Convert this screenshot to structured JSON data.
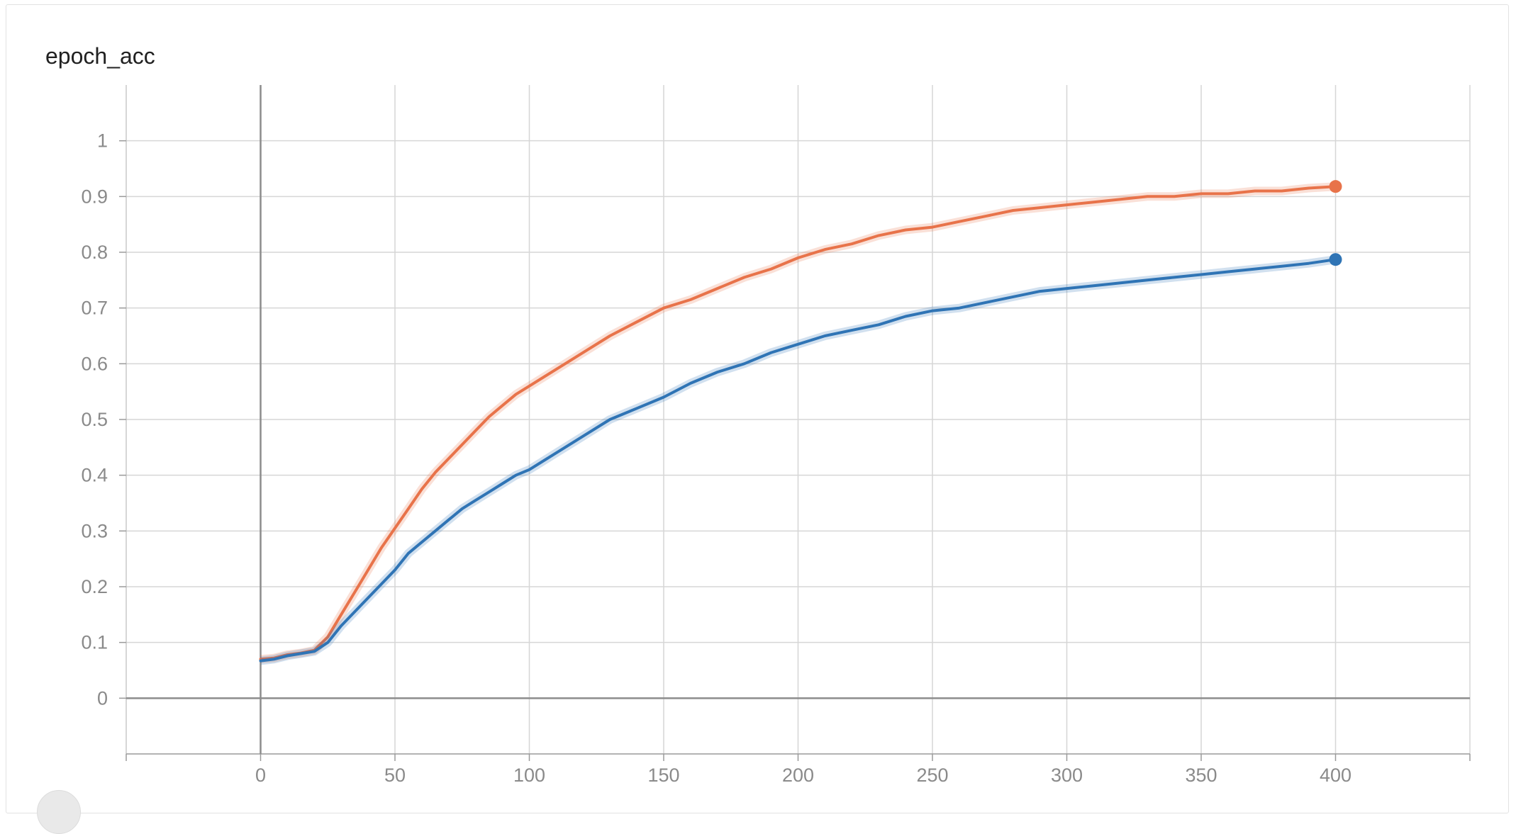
{
  "card": {
    "title": "epoch_acc"
  },
  "chart_data": {
    "type": "line",
    "title": "epoch_acc",
    "xlabel": "",
    "ylabel": "",
    "xlim": [
      -50,
      450
    ],
    "ylim": [
      -0.1,
      1.1
    ],
    "x_ticks": [
      0,
      50,
      100,
      150,
      200,
      250,
      300,
      350,
      400
    ],
    "y_ticks": [
      0,
      0.1,
      0.2,
      0.3,
      0.4,
      0.5,
      0.6,
      0.7,
      0.8,
      0.9,
      1
    ],
    "x_tick_labels": [
      "0",
      "50",
      "100",
      "150",
      "200",
      "250",
      "300",
      "350",
      "400"
    ],
    "y_tick_labels": [
      "0",
      "0.1",
      "0.2",
      "0.3",
      "0.4",
      "0.5",
      "0.6",
      "0.7",
      "0.8",
      "0.9",
      "1"
    ],
    "grid": true,
    "legend": "none",
    "series": [
      {
        "color": "#e8734a",
        "x": [
          0,
          5,
          10,
          15,
          20,
          25,
          30,
          35,
          40,
          45,
          50,
          55,
          60,
          65,
          70,
          75,
          80,
          85,
          90,
          95,
          100,
          110,
          120,
          130,
          140,
          150,
          160,
          170,
          180,
          190,
          200,
          210,
          220,
          230,
          240,
          250,
          260,
          270,
          280,
          290,
          300,
          310,
          320,
          330,
          340,
          350,
          360,
          370,
          380,
          390,
          400
        ],
        "y": [
          0.07,
          0.072,
          0.078,
          0.081,
          0.086,
          0.11,
          0.15,
          0.19,
          0.23,
          0.27,
          0.305,
          0.34,
          0.375,
          0.405,
          0.43,
          0.455,
          0.48,
          0.505,
          0.525,
          0.545,
          0.56,
          0.59,
          0.62,
          0.65,
          0.675,
          0.7,
          0.715,
          0.735,
          0.755,
          0.77,
          0.79,
          0.805,
          0.815,
          0.83,
          0.84,
          0.845,
          0.855,
          0.865,
          0.875,
          0.88,
          0.885,
          0.89,
          0.895,
          0.9,
          0.9,
          0.905,
          0.905,
          0.91,
          0.91,
          0.915,
          0.918
        ]
      },
      {
        "color": "#2f74b5",
        "x": [
          0,
          5,
          10,
          15,
          20,
          25,
          30,
          35,
          40,
          45,
          50,
          55,
          60,
          65,
          70,
          75,
          80,
          85,
          90,
          95,
          100,
          110,
          120,
          130,
          140,
          150,
          160,
          170,
          180,
          190,
          200,
          210,
          220,
          230,
          240,
          250,
          260,
          270,
          280,
          290,
          300,
          310,
          320,
          330,
          340,
          350,
          360,
          370,
          380,
          390,
          400
        ],
        "y": [
          0.067,
          0.07,
          0.076,
          0.08,
          0.084,
          0.1,
          0.13,
          0.155,
          0.18,
          0.205,
          0.23,
          0.26,
          0.28,
          0.3,
          0.32,
          0.34,
          0.355,
          0.37,
          0.385,
          0.4,
          0.41,
          0.44,
          0.47,
          0.5,
          0.52,
          0.54,
          0.565,
          0.585,
          0.6,
          0.62,
          0.635,
          0.65,
          0.66,
          0.67,
          0.685,
          0.695,
          0.7,
          0.71,
          0.72,
          0.73,
          0.735,
          0.74,
          0.745,
          0.75,
          0.755,
          0.76,
          0.765,
          0.77,
          0.775,
          0.78,
          0.787
        ]
      }
    ]
  }
}
